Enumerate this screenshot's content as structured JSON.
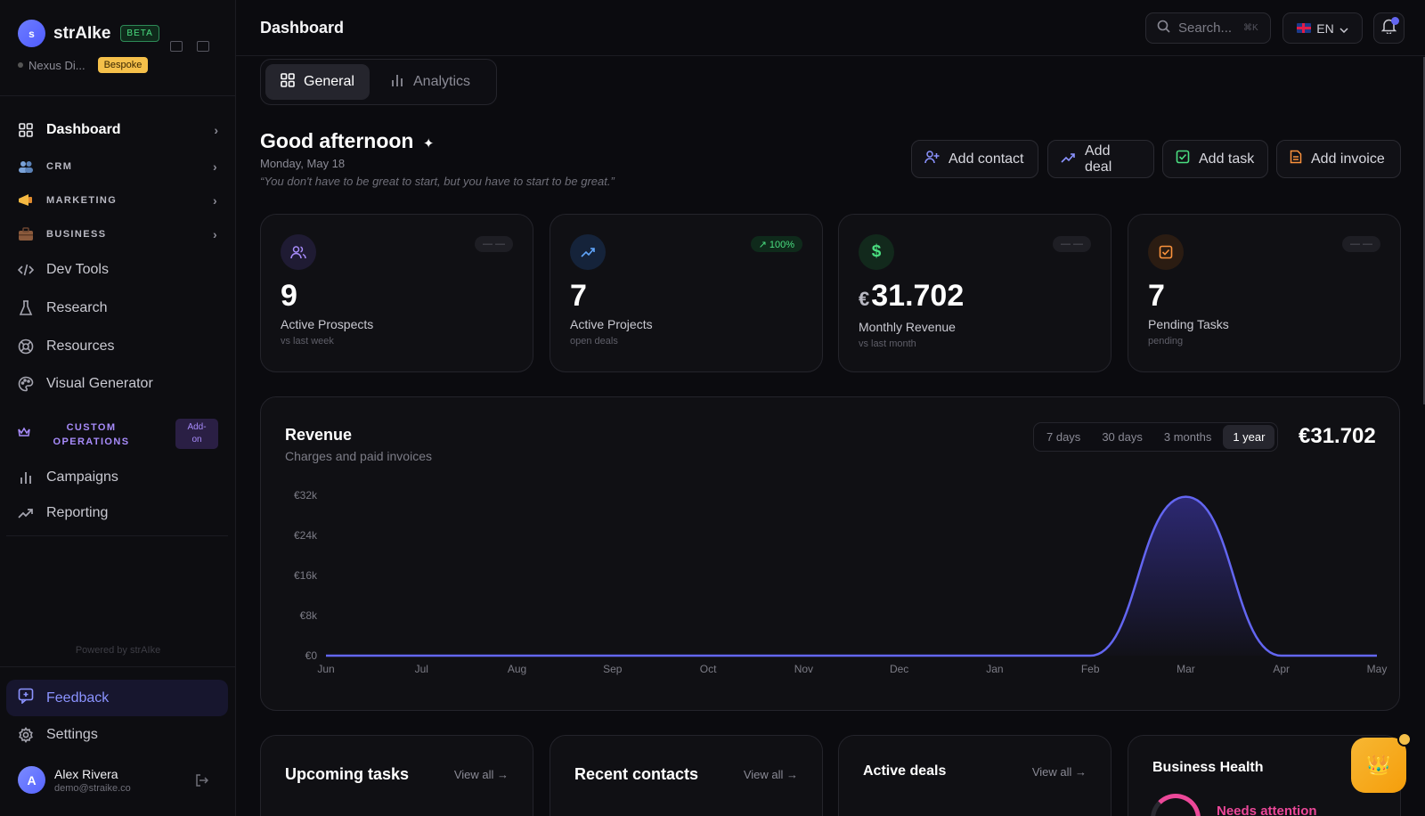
{
  "brand": {
    "logo_letter": "s",
    "name": "strAIke",
    "badge": "BETA",
    "workspace": "Nexus Di...",
    "workspace_badge": "Bespoke"
  },
  "topbar": {
    "title": "Dashboard",
    "search_placeholder": "Search...",
    "search_shortcut": "⌘K",
    "language": "EN"
  },
  "sidebar": {
    "items": [
      {
        "label": "Dashboard",
        "icon": "grid-icon"
      },
      {
        "label": "CRM",
        "icon": "people-icon"
      },
      {
        "label": "MARKETING",
        "icon": "megaphone-icon"
      },
      {
        "label": "BUSINESS",
        "icon": "briefcase-icon"
      },
      {
        "label": "Dev Tools",
        "icon": "code-icon"
      },
      {
        "label": "Research",
        "icon": "flask-icon"
      },
      {
        "label": "Resources",
        "icon": "lifebuoy-icon"
      },
      {
        "label": "Visual Generator",
        "icon": "palette-icon"
      }
    ],
    "custom_ops": {
      "label": "CUSTOM OPERATIONS",
      "badge": "Add-on"
    },
    "custom_items": [
      {
        "label": "Campaigns",
        "icon": "bar-chart-icon"
      },
      {
        "label": "Reporting",
        "icon": "trend-icon"
      }
    ],
    "powered_by": "Powered by strAIke",
    "feedback": "Feedback",
    "settings": "Settings",
    "user": {
      "initial": "A",
      "name": "Alex Rivera",
      "email": "demo@straike.co"
    }
  },
  "tabs": [
    {
      "label": "General"
    },
    {
      "label": "Analytics"
    }
  ],
  "greeting": {
    "title": "Good afternoon",
    "date": "Monday, May 18",
    "quote": "“You don't have to be great to start, but you have to start to be great.”"
  },
  "quick_actions": [
    "Add contact",
    "Add deal",
    "Add task",
    "Add invoice"
  ],
  "cards": [
    {
      "value": "9",
      "label": "Active Prospects",
      "sub": "vs last week",
      "badge": "— —",
      "color": "#a78bfa"
    },
    {
      "value": "7",
      "label": "Active Projects",
      "sub": "open deals",
      "badge": "↗ 100%",
      "color": "#60a5fa"
    },
    {
      "currency": "€",
      "value": "31.702",
      "label": "Monthly Revenue",
      "sub": "vs last month",
      "badge": "— —",
      "color": "#4ade80"
    },
    {
      "value": "7",
      "label": "Pending Tasks",
      "sub": "pending",
      "badge": "— —",
      "color": "#fb923c"
    }
  ],
  "revenue": {
    "title": "Revenue",
    "subtitle": "Charges and paid invoices",
    "ranges": [
      "7 days",
      "30 days",
      "3 months",
      "1 year"
    ],
    "active_range": "1 year",
    "total": "€31.702"
  },
  "chart_data": {
    "type": "area",
    "x": [
      "Jun",
      "Jul",
      "Aug",
      "Sep",
      "Oct",
      "Nov",
      "Dec",
      "Jan",
      "Feb",
      "Mar",
      "Apr",
      "May"
    ],
    "yticks": [
      "€0",
      "€8k",
      "€16k",
      "€24k",
      "€32k"
    ],
    "ylim": [
      0,
      32000
    ],
    "series": [
      {
        "values": [
          0,
          0,
          0,
          0,
          0,
          0,
          0,
          0,
          0,
          31702,
          0,
          0
        ],
        "color": "#6366f1"
      }
    ]
  },
  "bottom_cards": [
    {
      "title": "Upcoming tasks",
      "link": "View all →"
    },
    {
      "title": "Recent contacts",
      "link": "View all →"
    },
    {
      "title": "Active deals",
      "link": "View all →"
    },
    {
      "title": "Business Health",
      "status": "Needs attention"
    }
  ]
}
